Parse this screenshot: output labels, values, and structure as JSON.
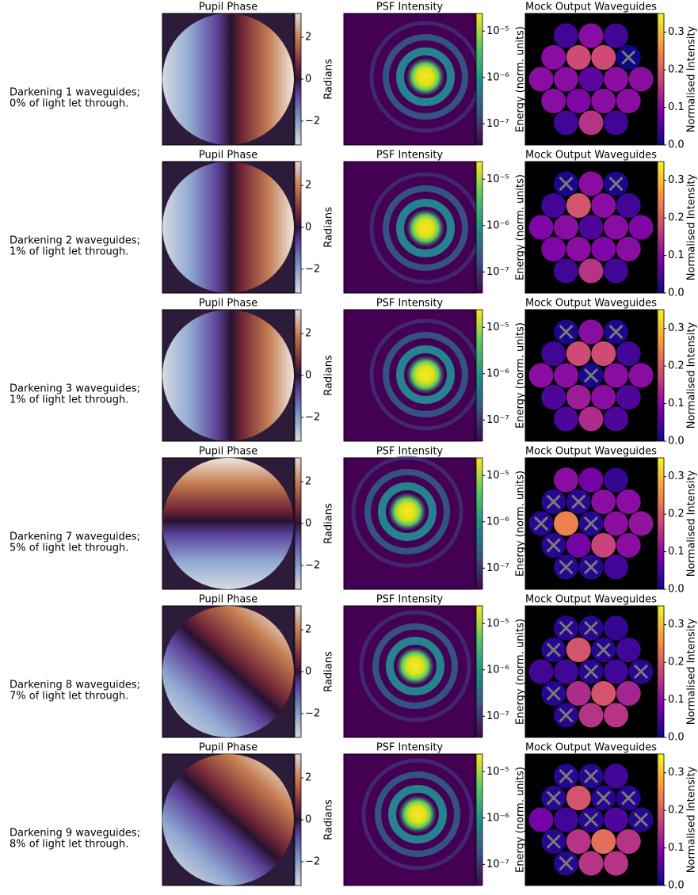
{
  "chart_data": {
    "type": "waveguide-grid",
    "titles": [
      "Pupil Phase",
      "PSF Intensity",
      "Mock Output Waveguides"
    ],
    "phase_colorbar": {
      "label": "Radians",
      "ylim": [
        -3.14,
        3.14
      ],
      "yticks": [
        {
          "value": -2,
          "label": "−2"
        },
        0,
        2
      ]
    },
    "psf_colorbar": {
      "label": "Energy (norm. units)",
      "log": true,
      "ylim": [
        3.5e-08,
        2.4e-05
      ],
      "yticks": [
        {
          "value": 1e-07,
          "label": "10⁻⁷"
        },
        {
          "value": 1e-06,
          "label": "10⁻⁶"
        },
        {
          "value": 1e-05,
          "label": "10⁻⁵"
        }
      ]
    },
    "intensity_colorbar": {
      "label": "Normalised Intensity",
      "ylim": [
        0,
        0.35
      ],
      "yticks": [
        {
          "value": 0,
          "label": "0.0"
        },
        0.1,
        0.2,
        0.3
      ]
    },
    "rows": [
      {
        "caption": [
          "Darkening 1 waveguides;",
          "0% of light let through."
        ],
        "intensities": [
          0.04,
          0.1,
          0.04,
          0.1,
          0.18,
          0.18,
          0,
          0.1,
          0.1,
          0.06,
          0.1,
          0.1,
          0.1,
          0.09,
          0.1,
          0.1,
          0.04,
          0.15,
          0.04
        ],
        "darkened": [
          6
        ]
      },
      {
        "caption": [
          "Darkening 2 waveguides;",
          "1% of light let through."
        ],
        "intensities": [
          0.01,
          0.1,
          0.01,
          0.04,
          0.19,
          0.1,
          0.04,
          0.09,
          0.1,
          0.05,
          0.1,
          0.09,
          0.09,
          0.1,
          0.09,
          0.1,
          0.04,
          0.15,
          0.04
        ],
        "darkened": [
          0,
          2
        ]
      },
      {
        "caption": [
          "Darkening 3 waveguides;",
          "1% of light let through."
        ],
        "intensities": [
          0.01,
          0.1,
          0.01,
          0.04,
          0.18,
          0.18,
          0.04,
          0.1,
          0.1,
          0.01,
          0.1,
          0.1,
          0.05,
          0.12,
          0.1,
          0.05,
          0.05,
          0.14,
          0.05
        ],
        "darkened": [
          0,
          2,
          9
        ]
      },
      {
        "caption": [
          "Darkening 7 waveguides;",
          "5% of light let through."
        ],
        "intensities": [
          0.1,
          0.08,
          0.03,
          0.02,
          0.02,
          0.1,
          0.1,
          0.02,
          0.24,
          0.02,
          0.1,
          0.11,
          0.02,
          0.08,
          0.17,
          0.1,
          0.02,
          0.02,
          0.04
        ],
        "darkened": [
          3,
          4,
          7,
          9,
          12,
          16,
          17
        ]
      },
      {
        "caption": [
          "Darkening 8 waveguides;",
          "7% of light let through."
        ],
        "intensities": [
          0.02,
          0.02,
          0.03,
          0.02,
          0.19,
          0.02,
          0.04,
          0.04,
          0.04,
          0.02,
          0.04,
          0.02,
          0.02,
          0.14,
          0.19,
          0.13,
          0.02,
          0.15,
          0.15
        ],
        "darkened": [
          0,
          1,
          3,
          5,
          9,
          11,
          12,
          16
        ]
      },
      {
        "caption": [
          "Darkening 9 waveguides;",
          "8% of light let through."
        ],
        "intensities": [
          0.02,
          0.02,
          0.04,
          0.02,
          0.19,
          0.02,
          0.02,
          0.08,
          0.04,
          0.02,
          0.05,
          0.02,
          0.02,
          0.15,
          0.22,
          0.15,
          0.02,
          0.15,
          0.15
        ],
        "darkened": [
          0,
          1,
          3,
          5,
          6,
          9,
          11,
          12,
          16
        ]
      }
    ]
  }
}
